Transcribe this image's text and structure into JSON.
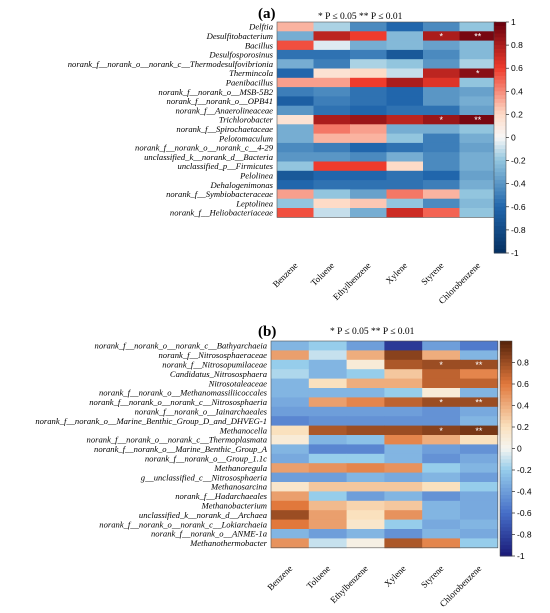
{
  "chart_data": [
    {
      "type": "heatmap",
      "panel_label": "(a)",
      "significance_note": "* P ≤ 0.05     ** P ≤ 0.01",
      "columns": [
        "Benzene",
        "Toluene",
        "Ethylbenzene",
        "Xylene",
        "Styrene",
        "Chlorobenzene"
      ],
      "rows": [
        "Delftia",
        "Desulfitobacterium",
        "Bacillus",
        "Desulfosporosinus",
        "norank_f__norank_o__norank_c__Thermodesulfovibrionia",
        "Thermincola",
        "Paenibacillus",
        "norank_f__norank_o__MSB-5B2",
        "norank_f__norank_o__OPB41",
        "norank_f__Anaerolineaceae",
        "Trichlorobacter",
        "norank_f__Spirochaetaceae",
        "Pelotomaculum",
        "norank_f__norank_o__norank_c__4-29",
        "unclassified_k__norank_d__Bacteria",
        "unclassified_p__Firmicutes",
        "Pelolinea",
        "Dehalogenimonas",
        "norank_f__Symbiobacteraceae",
        "Leptolinea",
        "norank_f__Heliobacteriaceae"
      ],
      "values": [
        [
          0.3,
          -0.15,
          -0.45,
          -0.6,
          -0.45,
          -0.2
        ],
        [
          -0.3,
          0.75,
          0.6,
          -0.25,
          0.8,
          0.95
        ],
        [
          0.55,
          -0.05,
          -0.3,
          -0.25,
          -0.35,
          -0.25
        ],
        [
          -0.55,
          -0.55,
          -0.5,
          -0.7,
          -0.45,
          -0.25
        ],
        [
          -0.3,
          -0.5,
          -0.15,
          -0.2,
          -0.4,
          -0.15
        ],
        [
          -0.6,
          0.15,
          0.2,
          -0.1,
          0.75,
          0.9
        ],
        [
          0.35,
          0.35,
          0.6,
          0.8,
          0.65,
          -0.2
        ],
        [
          -0.5,
          -0.45,
          -0.55,
          -0.6,
          -0.4,
          -0.35
        ],
        [
          -0.65,
          -0.5,
          -0.55,
          -0.6,
          -0.4,
          -0.3
        ],
        [
          -0.4,
          -0.55,
          -0.6,
          -0.55,
          -0.55,
          -0.35
        ],
        [
          0.15,
          0.8,
          0.85,
          0.75,
          0.85,
          0.95
        ],
        [
          -0.3,
          0.45,
          0.35,
          -0.3,
          -0.3,
          -0.2
        ],
        [
          -0.3,
          0.3,
          0.3,
          -0.2,
          -0.5,
          -0.3
        ],
        [
          -0.45,
          -0.5,
          -0.6,
          -0.55,
          -0.5,
          -0.35
        ],
        [
          -0.4,
          -0.4,
          -0.45,
          -0.3,
          -0.45,
          -0.3
        ],
        [
          -0.2,
          0.6,
          0.6,
          0.2,
          -0.45,
          -0.3
        ],
        [
          -0.7,
          -0.6,
          -0.6,
          -0.55,
          -0.6,
          -0.35
        ],
        [
          -0.6,
          -0.55,
          -0.55,
          -0.55,
          -0.5,
          -0.3
        ],
        [
          0.35,
          -0.2,
          -0.35,
          0.45,
          0.3,
          -0.2
        ],
        [
          -0.2,
          0.2,
          0.25,
          -0.2,
          -0.45,
          -0.25
        ],
        [
          0.55,
          -0.1,
          -0.3,
          0.7,
          0.5,
          -0.2
        ]
      ],
      "significance": [
        {
          "row": 1,
          "col": 4,
          "mark": "*"
        },
        {
          "row": 1,
          "col": 5,
          "mark": "**"
        },
        {
          "row": 5,
          "col": 5,
          "mark": "*"
        },
        {
          "row": 10,
          "col": 4,
          "mark": "*"
        },
        {
          "row": 10,
          "col": 5,
          "mark": "**"
        }
      ],
      "colorbar": {
        "range": [
          -1,
          1
        ],
        "ticks": [
          "1",
          "0.8",
          "0.6",
          "0.4",
          "0.2",
          "0",
          "-0.2",
          "-0.4",
          "-0.6",
          "-0.8",
          "-1"
        ],
        "palette": "blue-white-red"
      }
    },
    {
      "type": "heatmap",
      "panel_label": "(b)",
      "significance_note": "* P ≤ 0.05     ** P ≤ 0.01",
      "columns": [
        "Benzene",
        "Toluene",
        "Ethylbenzene",
        "Xylene",
        "Styrene",
        "Chlorobenzene"
      ],
      "rows": [
        "norank_f__norank_o__norank_c__Bathyarchaeia",
        "norank_f__Nitrososphaeraceae",
        "norank_f__Nitrosopumilaceae",
        "Candidatus_Nitrososphaera",
        "Nitrosotaleaceae",
        "norank_f__norank_o__Methanomassiliicoccales",
        "norank_f__norank_o__norank_c__Nitrososphaeria",
        "norank_f__norank_o__Iainarchaeales",
        "norank_f__norank_o__Marine_Benthic_Group_D_and_DHVEG-1",
        "Methanocella",
        "norank_f__norank_o__norank_c__Thermoplasmata",
        "norank_f__norank_o__Marine_Benthic_Group_A",
        "norank_f__norank_o__Group_1.1c",
        "Methanoregula",
        "g__unclassified_c__Nitrososphaeria",
        "Methanosarcina",
        "norank_f__Hadarchaeales",
        "Methanobacterium",
        "unclassified_k__norank_d__Archaea",
        "norank_f__norank_o__norank_c__Lokiarchaeia",
        "norank_f__norank_o__ANME-1a",
        "Methanothermobacter"
      ],
      "values": [
        [
          -0.3,
          -0.2,
          -0.4,
          -0.85,
          -0.4,
          -0.55
        ],
        [
          0.45,
          -0.1,
          0.4,
          0.85,
          0.4,
          -0.3
        ],
        [
          -0.2,
          -0.3,
          0.1,
          0.75,
          0.8,
          0.8
        ],
        [
          -0.15,
          -0.3,
          -0.2,
          0.3,
          0.7,
          0.55
        ],
        [
          -0.3,
          0.2,
          0.4,
          0.4,
          0.7,
          0.7
        ],
        [
          -0.3,
          -0.3,
          -0.3,
          -0.2,
          0.1,
          -0.3
        ],
        [
          -0.35,
          0.45,
          0.55,
          0.7,
          0.8,
          0.8
        ],
        [
          -0.4,
          -0.4,
          -0.4,
          -0.4,
          -0.45,
          -0.35
        ],
        [
          -0.5,
          -0.45,
          -0.45,
          -0.45,
          -0.45,
          -0.3
        ],
        [
          0.2,
          0.75,
          0.8,
          0.8,
          0.85,
          0.9
        ],
        [
          0.1,
          -0.3,
          -0.25,
          0.55,
          0.4,
          0.2
        ],
        [
          -0.3,
          -0.5,
          -0.5,
          -0.3,
          -0.4,
          -0.45
        ],
        [
          -0.35,
          -0.2,
          -0.2,
          -0.3,
          -0.45,
          -0.35
        ],
        [
          0.45,
          0.5,
          0.55,
          0.5,
          -0.2,
          -0.3
        ],
        [
          -0.4,
          -0.4,
          -0.3,
          -0.35,
          -0.3,
          -0.4
        ],
        [
          0.15,
          0.3,
          0.3,
          0.3,
          0.2,
          -0.2
        ],
        [
          0.45,
          -0.2,
          -0.4,
          -0.3,
          -0.45,
          -0.35
        ],
        [
          0.6,
          0.35,
          0.25,
          0.3,
          -0.3,
          -0.35
        ],
        [
          0.8,
          0.45,
          0.2,
          0.5,
          -0.3,
          -0.35
        ],
        [
          0.6,
          0.45,
          0.15,
          -0.2,
          -0.35,
          -0.3
        ],
        [
          -0.3,
          -0.4,
          -0.3,
          -0.45,
          -0.3,
          -0.35
        ],
        [
          0.5,
          -0.1,
          0.05,
          0.75,
          0.55,
          -0.2
        ]
      ],
      "significance": [
        {
          "row": 2,
          "col": 4,
          "mark": "*"
        },
        {
          "row": 2,
          "col": 5,
          "mark": "**"
        },
        {
          "row": 6,
          "col": 4,
          "mark": "*"
        },
        {
          "row": 6,
          "col": 5,
          "mark": "**"
        },
        {
          "row": 9,
          "col": 4,
          "mark": "*"
        },
        {
          "row": 9,
          "col": 5,
          "mark": "**"
        }
      ],
      "colorbar": {
        "range": [
          -1,
          1
        ],
        "ticks": [
          "0.8",
          "0.6",
          "0.4",
          "0.2",
          "0",
          "-0.2",
          "-0.4",
          "-0.6",
          "-0.8",
          "-1"
        ],
        "palette": "blue-white-brown"
      }
    }
  ]
}
